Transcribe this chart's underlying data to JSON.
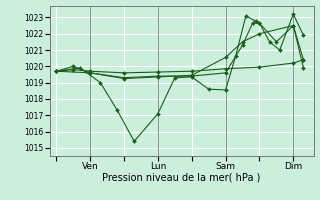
{
  "xlabel": "Pression niveau de la mer( hPa )",
  "bg_color": "#cceedd",
  "grid_color": "#ffffff",
  "line_color": "#1a5e1a",
  "ylim": [
    1014.5,
    1023.7
  ],
  "yticks": [
    1015,
    1016,
    1017,
    1018,
    1019,
    1020,
    1021,
    1022,
    1023
  ],
  "xtick_labels": [
    "",
    "Ven",
    "",
    "Lun",
    "",
    "Sam",
    "",
    "Dim"
  ],
  "xtick_positions": [
    0,
    1,
    2,
    3,
    4,
    5,
    6,
    7
  ],
  "xlim": [
    -0.2,
    7.6
  ],
  "vlines": [
    1,
    3,
    5,
    7
  ],
  "series": [
    {
      "x": [
        0,
        0.7,
        1.3,
        1.8,
        2.3,
        3.0,
        3.5,
        4.0,
        4.5,
        5.0,
        5.3,
        5.6,
        5.9,
        6.0,
        6.3,
        6.6,
        7.0,
        7.3
      ],
      "y": [
        1019.7,
        1019.9,
        1019.0,
        1017.3,
        1015.4,
        1017.1,
        1019.3,
        1019.35,
        1018.6,
        1018.55,
        1020.65,
        1023.1,
        1022.75,
        1022.65,
        1021.5,
        1021.0,
        1023.2,
        1021.9
      ]
    },
    {
      "x": [
        0,
        0.5,
        1.0,
        2.0,
        3.0,
        4.0,
        5.0,
        6.0,
        7.0,
        7.3
      ],
      "y": [
        1019.7,
        1019.8,
        1019.7,
        1019.6,
        1019.65,
        1019.7,
        1019.85,
        1019.95,
        1020.2,
        1020.4
      ]
    },
    {
      "x": [
        0,
        1.0,
        2.0,
        3.0,
        4.0,
        5.0,
        5.5,
        5.8,
        6.0,
        6.5,
        7.0,
        7.3
      ],
      "y": [
        1019.7,
        1019.6,
        1019.3,
        1019.4,
        1019.4,
        1019.6,
        1021.3,
        1022.65,
        1022.65,
        1021.5,
        1022.5,
        1019.9
      ]
    },
    {
      "x": [
        0,
        0.5,
        1.0,
        2.0,
        3.0,
        4.0,
        5.0,
        5.5,
        6.0,
        7.0,
        7.3
      ],
      "y": [
        1019.7,
        1020.0,
        1019.6,
        1019.25,
        1019.35,
        1019.45,
        1020.55,
        1021.5,
        1022.0,
        1022.5,
        1020.4
      ]
    }
  ]
}
